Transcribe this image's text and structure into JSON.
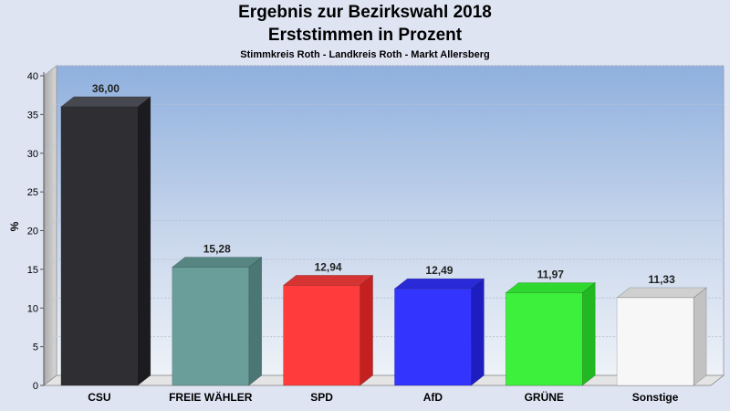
{
  "chart_data": {
    "type": "bar",
    "title": "Ergebnis zur Bezirkswahl 2018",
    "subtitle": "Erststimmen in Prozent",
    "caption": "Stimmkreis Roth - Landkreis Roth - Markt Allersberg",
    "ylabel": "%",
    "ylim": [
      0,
      40
    ],
    "yticks": [
      0,
      5,
      10,
      15,
      20,
      25,
      30,
      35,
      40
    ],
    "grid": true,
    "categories": [
      "CSU",
      "FREIE WÄHLER",
      "SPD",
      "AfD",
      "GRÜNE",
      "Sonstige"
    ],
    "values": [
      36.0,
      15.28,
      12.94,
      12.49,
      11.97,
      11.33
    ],
    "value_labels": [
      "36,00",
      "15,28",
      "12,94",
      "12,49",
      "11,97",
      "11,33"
    ],
    "colors": [
      "#2e2e33",
      "#6a9e9b",
      "#ff3b3b",
      "#3434ff",
      "#3cf03c",
      "#f7f7f7"
    ],
    "side_colors": [
      "#1c1c20",
      "#4a7674",
      "#c42020",
      "#1e1ec0",
      "#22b822",
      "#c2c2c2"
    ],
    "top_colors": [
      "#474750",
      "#578682",
      "#d63333",
      "#2a2ad8",
      "#2ed82e",
      "#d0d0d0"
    ]
  }
}
